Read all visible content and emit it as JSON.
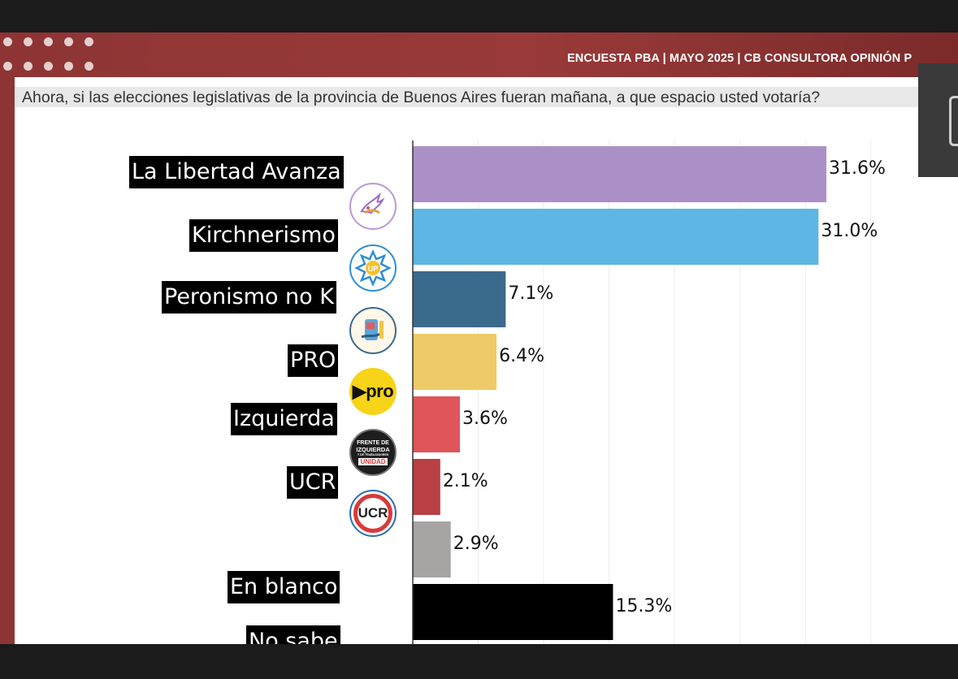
{
  "header": {
    "title": "ENCUESTA PBA | MAYO 2025 | CB CONSULTORA OPINIÓN P",
    "question": "Ahora, si las elecciones legislativas de la provincia de Buenos Aires fueran mañana, a que espacio usted votaría?"
  },
  "logos": {
    "up_text": "UP",
    "pro_text": "pro",
    "izquierda_line1": "FRENTE DE",
    "izquierda_line2": "IZQUIERDA",
    "izquierda_line3": "Y DE TRABAJADORES",
    "izquierda_line4": "UNIDAD",
    "ucr_text": "UCR"
  },
  "colors": {
    "slide_background": "#9a3a3a",
    "label_background": "#000000"
  },
  "chart_data": {
    "type": "bar",
    "orientation": "horizontal",
    "categories": [
      "La Libertad Avanza",
      "Kirchnerismo",
      "Peronismo no K",
      "PRO",
      "Izquierda",
      "UCR",
      "En blanco",
      "No sabe"
    ],
    "values": [
      31.6,
      31.0,
      7.1,
      6.4,
      3.6,
      2.1,
      2.9,
      15.3
    ],
    "value_labels": [
      "31.6%",
      "31.0%",
      "7.1%",
      "6.4%",
      "3.6%",
      "2.1%",
      "2.9%",
      "15.3%"
    ],
    "bar_colors": [
      "#ab90c8",
      "#5db6e4",
      "#3a6a8c",
      "#eecb68",
      "#e05559",
      "#b84045",
      "#a8a4a3",
      "#000000"
    ],
    "xlim": [
      0,
      35
    ],
    "grid": true
  }
}
